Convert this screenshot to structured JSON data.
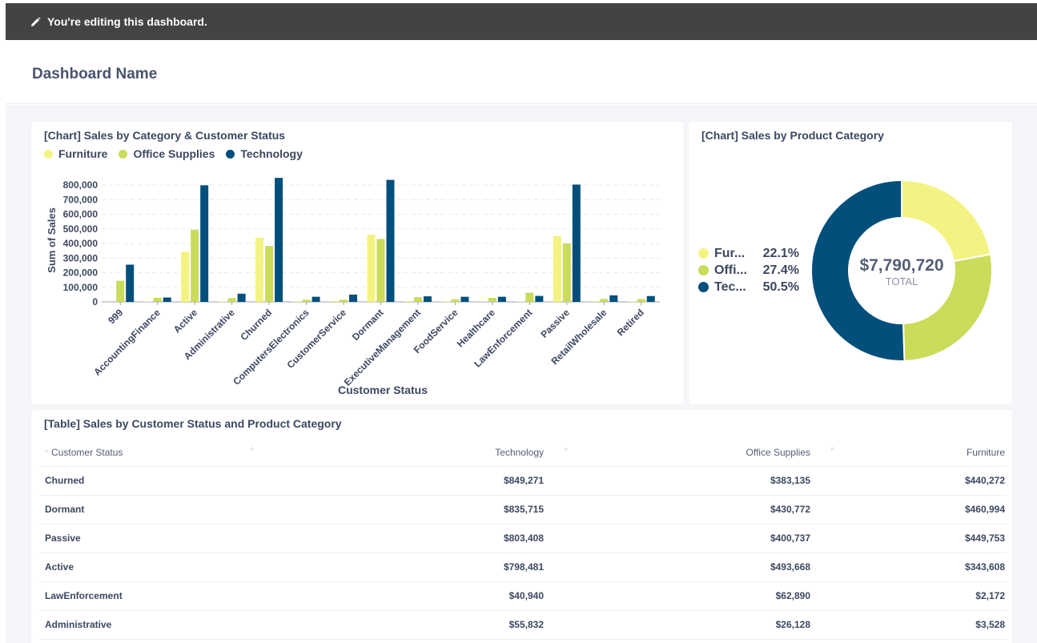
{
  "banner": {
    "text": "You're editing this dashboard."
  },
  "header": {
    "title": "Dashboard Name"
  },
  "bar_card": {
    "title": "[Chart] Sales by Category & Customer Status"
  },
  "pie_card": {
    "title": "[Chart] Sales by Product Category"
  },
  "table_card": {
    "title": "[Table] Sales by Customer Status and Product Category"
  },
  "colors": {
    "furniture": "#f3f383",
    "office": "#cbdb5a",
    "technology": "#034f7b"
  },
  "chart_data": [
    {
      "type": "bar",
      "title": "[Chart] Sales by Category & Customer Status",
      "xlabel": "Customer Status",
      "ylabel": "Sum of Sales",
      "ylim": [
        0,
        850000
      ],
      "yticks": [
        0,
        100000,
        200000,
        300000,
        400000,
        500000,
        600000,
        700000,
        800000
      ],
      "ytick_labels": [
        "0",
        "100,000",
        "200,000",
        "300,000",
        "400,000",
        "500,000",
        "600,000",
        "700,000",
        "800,000"
      ],
      "categories": [
        "999",
        "AccountingFinance",
        "Active",
        "Administrative",
        "Churned",
        "ComputersElectronics",
        "CustomerService",
        "Dormant",
        "ExecutiveManagement",
        "FoodService",
        "Healthcare",
        "LawEnforcement",
        "Passive",
        "RetailWholesale",
        "Retired"
      ],
      "series": [
        {
          "name": "Furniture",
          "values": [
            0,
            5000,
            343608,
            3528,
            440272,
            4000,
            6000,
            460994,
            5000,
            4000,
            6000,
            2172,
            449753,
            5000,
            4000
          ]
        },
        {
          "name": "Office Supplies",
          "values": [
            145000,
            28000,
            493668,
            26128,
            383135,
            15000,
            15000,
            430772,
            33000,
            18000,
            27000,
            62890,
            400737,
            20000,
            20000
          ]
        },
        {
          "name": "Technology",
          "values": [
            255000,
            30000,
            798481,
            55832,
            849271,
            35000,
            50000,
            835715,
            38000,
            35000,
            35000,
            40940,
            803408,
            45000,
            40000
          ]
        }
      ]
    },
    {
      "type": "pie",
      "title": "[Chart] Sales by Product Category",
      "center_value": "$7,790,720",
      "center_label": "TOTAL",
      "slices": [
        {
          "name": "Furniture",
          "short": "Fur...",
          "percent": 22.1,
          "label": "22.1%"
        },
        {
          "name": "Office Supplies",
          "short": "Offi...",
          "percent": 27.4,
          "label": "27.4%"
        },
        {
          "name": "Technology",
          "short": "Tec...",
          "percent": 50.5,
          "label": "50.5%"
        }
      ]
    }
  ],
  "table": {
    "headers": [
      "Customer Status",
      "Technology",
      "Office Supplies",
      "Furniture"
    ],
    "rows": [
      [
        "Churned",
        "$849,271",
        "$383,135",
        "$440,272"
      ],
      [
        "Dormant",
        "$835,715",
        "$430,772",
        "$460,994"
      ],
      [
        "Passive",
        "$803,408",
        "$400,737",
        "$449,753"
      ],
      [
        "Active",
        "$798,481",
        "$493,668",
        "$343,608"
      ],
      [
        "LawEnforcement",
        "$40,940",
        "$62,890",
        "$2,172"
      ],
      [
        "Administrative",
        "$55,832",
        "$26,128",
        "$3,528"
      ]
    ]
  }
}
